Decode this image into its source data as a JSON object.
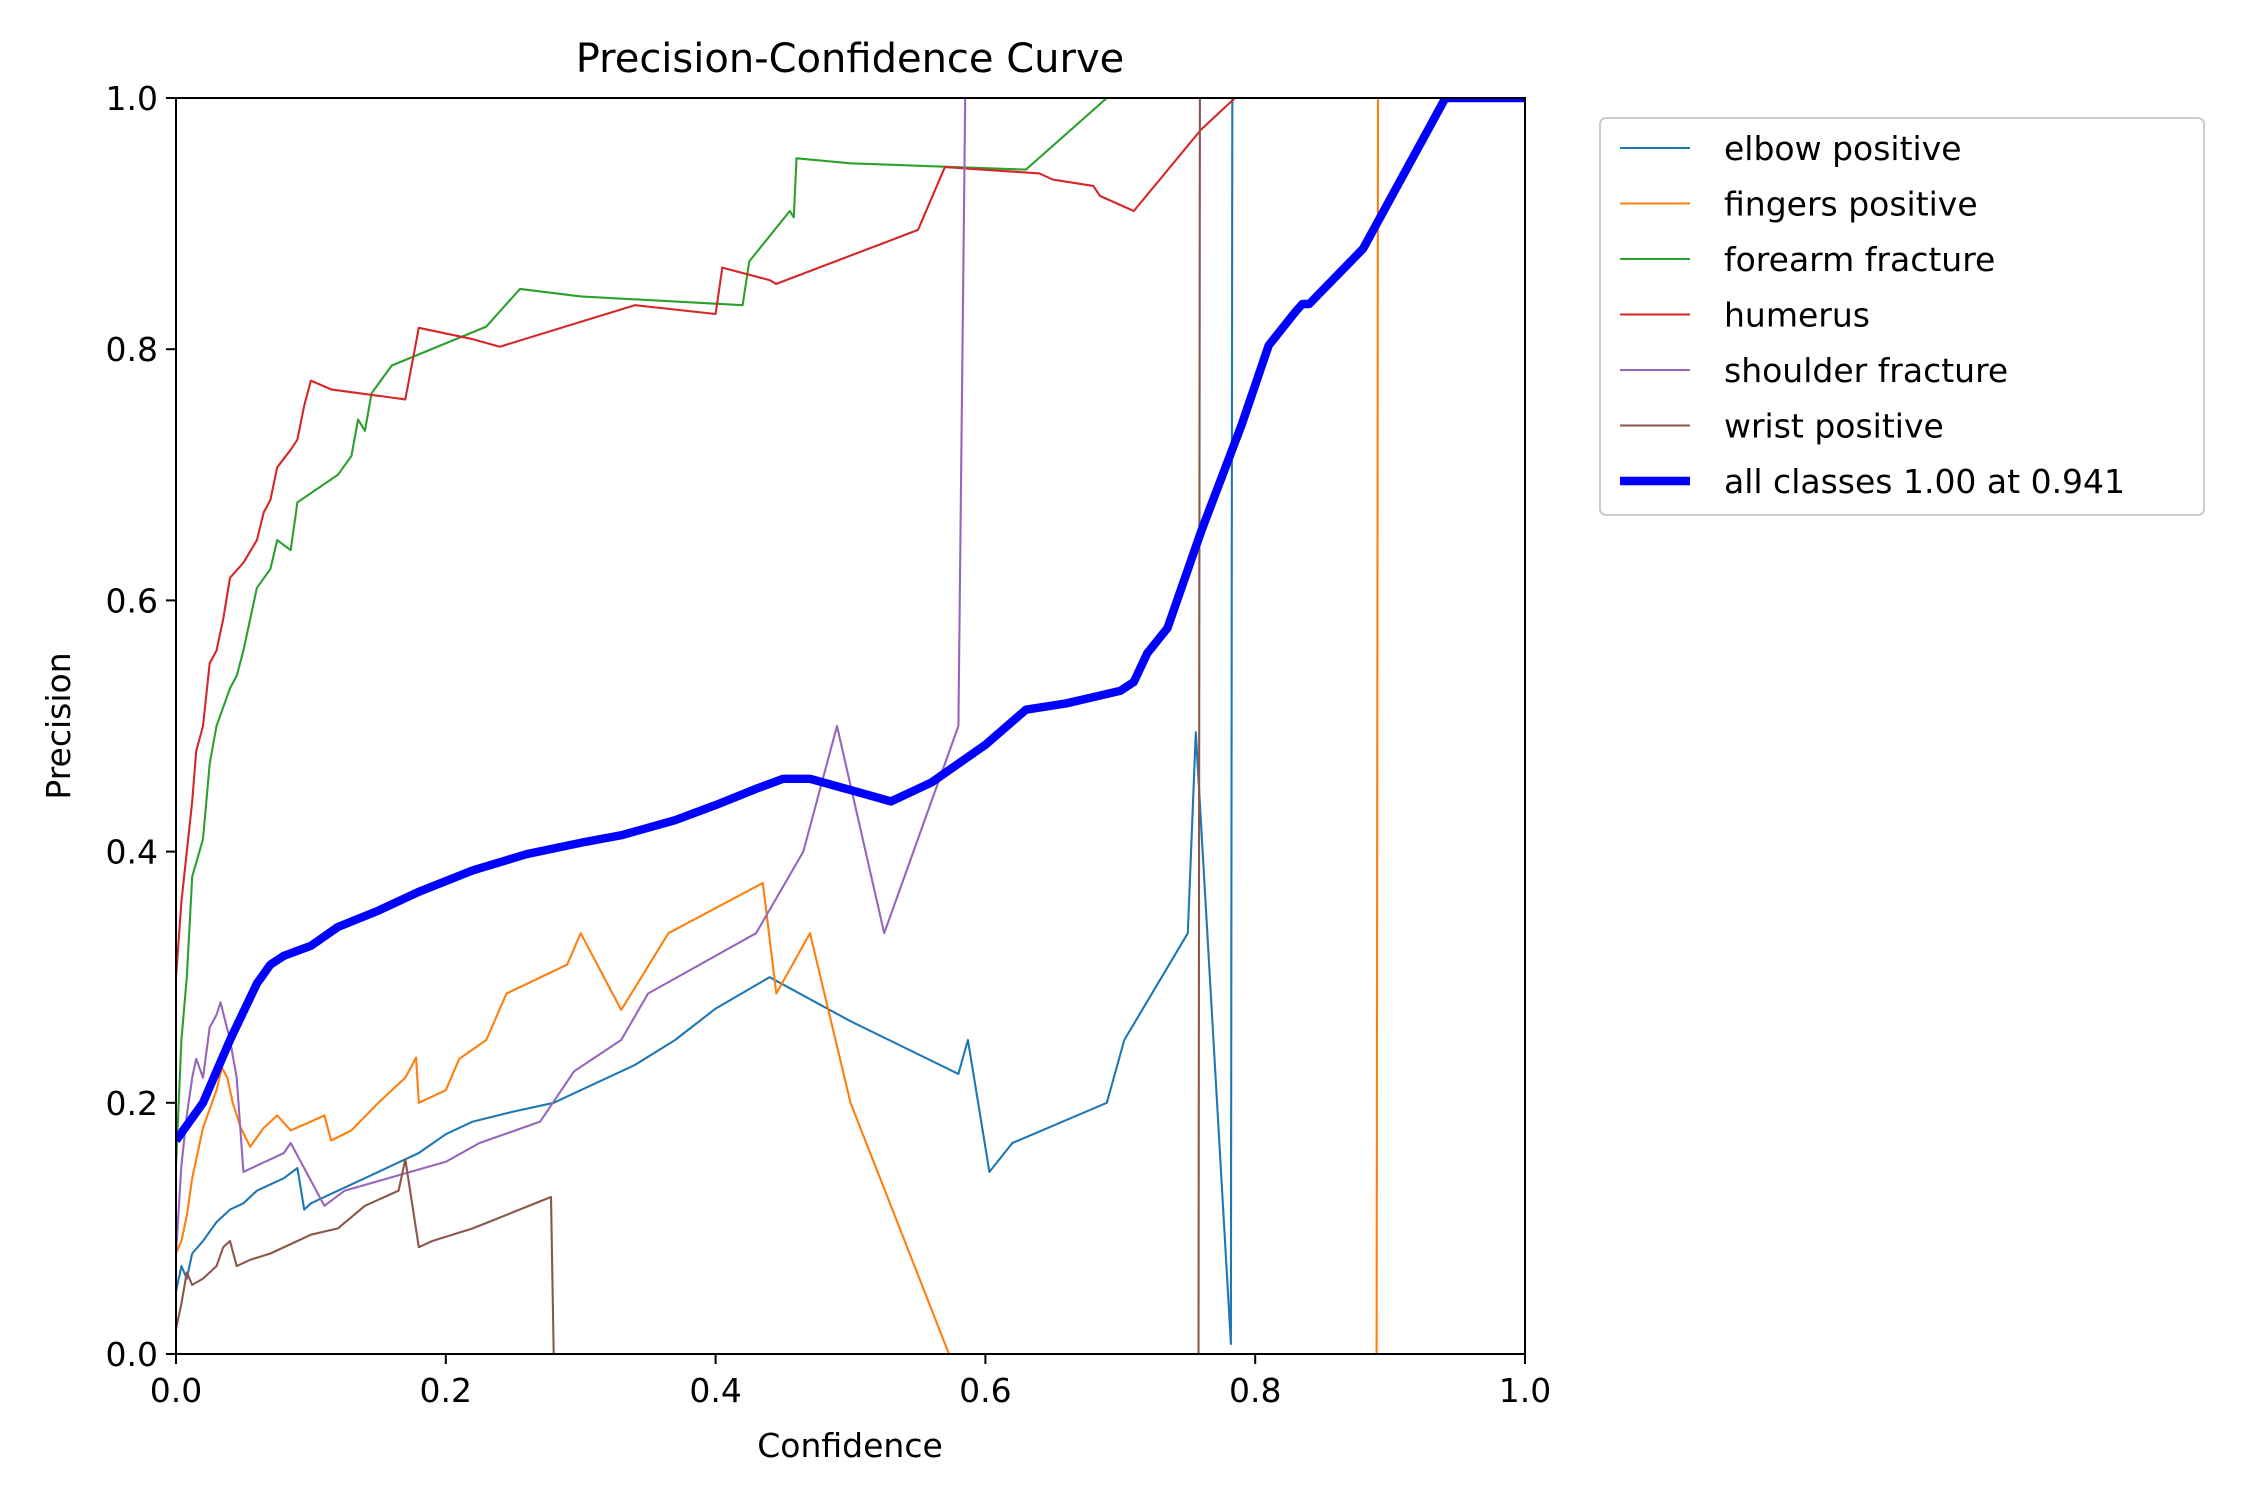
{
  "chart_data": {
    "type": "line",
    "title": "Precision-Confidence Curve",
    "xlabel": "Confidence",
    "ylabel": "Precision",
    "xlim": [
      0,
      1
    ],
    "ylim": [
      0,
      1
    ],
    "xticks": [
      "0.0",
      "0.2",
      "0.4",
      "0.6",
      "0.8",
      "1.0"
    ],
    "yticks": [
      "0.0",
      "0.2",
      "0.4",
      "0.6",
      "0.8",
      "1.0"
    ],
    "grid": false,
    "legend_position": "outside-top-right",
    "series": [
      {
        "name": "elbow positive",
        "color": "#1f77b4",
        "linewidth": 1.5,
        "points": [
          [
            0.0,
            0.05
          ],
          [
            0.004,
            0.07
          ],
          [
            0.008,
            0.06
          ],
          [
            0.012,
            0.08
          ],
          [
            0.02,
            0.09
          ],
          [
            0.03,
            0.105
          ],
          [
            0.04,
            0.115
          ],
          [
            0.05,
            0.12
          ],
          [
            0.06,
            0.13
          ],
          [
            0.07,
            0.135
          ],
          [
            0.08,
            0.14
          ],
          [
            0.09,
            0.148
          ],
          [
            0.095,
            0.115
          ],
          [
            0.1,
            0.12
          ],
          [
            0.12,
            0.13
          ],
          [
            0.14,
            0.14
          ],
          [
            0.16,
            0.15
          ],
          [
            0.18,
            0.16
          ],
          [
            0.2,
            0.175
          ],
          [
            0.22,
            0.185
          ],
          [
            0.25,
            0.193
          ],
          [
            0.28,
            0.2
          ],
          [
            0.3,
            0.21
          ],
          [
            0.34,
            0.23
          ],
          [
            0.37,
            0.25
          ],
          [
            0.4,
            0.275
          ],
          [
            0.44,
            0.3
          ],
          [
            0.5,
            0.265
          ],
          [
            0.58,
            0.223
          ],
          [
            0.587,
            0.25
          ],
          [
            0.603,
            0.145
          ],
          [
            0.62,
            0.168
          ],
          [
            0.69,
            0.2
          ],
          [
            0.703,
            0.25
          ],
          [
            0.75,
            0.335
          ],
          [
            0.756,
            0.495
          ],
          [
            0.782,
            0.008
          ],
          [
            0.783,
            1.0
          ],
          [
            1.0,
            1.0
          ]
        ]
      },
      {
        "name": "fingers positive",
        "color": "#ff7f0e",
        "linewidth": 1.5,
        "points": [
          [
            0.0,
            0.08
          ],
          [
            0.004,
            0.09
          ],
          [
            0.008,
            0.11
          ],
          [
            0.012,
            0.14
          ],
          [
            0.02,
            0.18
          ],
          [
            0.03,
            0.21
          ],
          [
            0.034,
            0.228
          ],
          [
            0.038,
            0.22
          ],
          [
            0.042,
            0.2
          ],
          [
            0.048,
            0.18
          ],
          [
            0.055,
            0.165
          ],
          [
            0.065,
            0.18
          ],
          [
            0.075,
            0.19
          ],
          [
            0.085,
            0.178
          ],
          [
            0.1,
            0.185
          ],
          [
            0.11,
            0.19
          ],
          [
            0.115,
            0.17
          ],
          [
            0.13,
            0.178
          ],
          [
            0.15,
            0.2
          ],
          [
            0.17,
            0.22
          ],
          [
            0.178,
            0.236
          ],
          [
            0.18,
            0.2
          ],
          [
            0.2,
            0.21
          ],
          [
            0.21,
            0.235
          ],
          [
            0.23,
            0.25
          ],
          [
            0.245,
            0.287
          ],
          [
            0.29,
            0.31
          ],
          [
            0.3,
            0.335
          ],
          [
            0.33,
            0.274
          ],
          [
            0.345,
            0.3
          ],
          [
            0.365,
            0.335
          ],
          [
            0.435,
            0.375
          ],
          [
            0.445,
            0.287
          ],
          [
            0.47,
            0.335
          ],
          [
            0.5,
            0.2
          ],
          [
            0.573,
            0.0
          ],
          [
            0.89,
            0.0
          ],
          [
            0.891,
            1.0
          ],
          [
            1.0,
            1.0
          ]
        ]
      },
      {
        "name": "forearm fracture",
        "color": "#2ca02c",
        "linewidth": 1.5,
        "points": [
          [
            0.0,
            0.15
          ],
          [
            0.004,
            0.25
          ],
          [
            0.008,
            0.3
          ],
          [
            0.012,
            0.38
          ],
          [
            0.02,
            0.41
          ],
          [
            0.025,
            0.47
          ],
          [
            0.03,
            0.5
          ],
          [
            0.04,
            0.53
          ],
          [
            0.045,
            0.54
          ],
          [
            0.05,
            0.56
          ],
          [
            0.06,
            0.61
          ],
          [
            0.07,
            0.625
          ],
          [
            0.075,
            0.648
          ],
          [
            0.085,
            0.64
          ],
          [
            0.09,
            0.678
          ],
          [
            0.12,
            0.7
          ],
          [
            0.13,
            0.715
          ],
          [
            0.135,
            0.744
          ],
          [
            0.14,
            0.735
          ],
          [
            0.145,
            0.765
          ],
          [
            0.16,
            0.787
          ],
          [
            0.23,
            0.818
          ],
          [
            0.255,
            0.848
          ],
          [
            0.3,
            0.842
          ],
          [
            0.42,
            0.835
          ],
          [
            0.425,
            0.87
          ],
          [
            0.455,
            0.91
          ],
          [
            0.458,
            0.905
          ],
          [
            0.46,
            0.952
          ],
          [
            0.5,
            0.948
          ],
          [
            0.63,
            0.943
          ],
          [
            0.69,
            1.0
          ],
          [
            1.0,
            1.0
          ]
        ]
      },
      {
        "name": "humerus",
        "color": "#d62728",
        "linewidth": 1.5,
        "points": [
          [
            0.0,
            0.3
          ],
          [
            0.004,
            0.36
          ],
          [
            0.008,
            0.4
          ],
          [
            0.012,
            0.44
          ],
          [
            0.015,
            0.48
          ],
          [
            0.02,
            0.5
          ],
          [
            0.025,
            0.55
          ],
          [
            0.03,
            0.56
          ],
          [
            0.035,
            0.585
          ],
          [
            0.04,
            0.618
          ],
          [
            0.05,
            0.63
          ],
          [
            0.06,
            0.648
          ],
          [
            0.065,
            0.67
          ],
          [
            0.07,
            0.68
          ],
          [
            0.075,
            0.706
          ],
          [
            0.085,
            0.72
          ],
          [
            0.09,
            0.728
          ],
          [
            0.095,
            0.755
          ],
          [
            0.1,
            0.775
          ],
          [
            0.115,
            0.768
          ],
          [
            0.17,
            0.76
          ],
          [
            0.18,
            0.817
          ],
          [
            0.22,
            0.808
          ],
          [
            0.24,
            0.802
          ],
          [
            0.34,
            0.835
          ],
          [
            0.4,
            0.828
          ],
          [
            0.405,
            0.865
          ],
          [
            0.44,
            0.855
          ],
          [
            0.445,
            0.852
          ],
          [
            0.55,
            0.895
          ],
          [
            0.57,
            0.945
          ],
          [
            0.64,
            0.94
          ],
          [
            0.65,
            0.935
          ],
          [
            0.68,
            0.93
          ],
          [
            0.685,
            0.922
          ],
          [
            0.71,
            0.91
          ],
          [
            0.76,
            0.975
          ],
          [
            0.785,
            1.0
          ],
          [
            1.0,
            1.0
          ]
        ]
      },
      {
        "name": "shoulder fracture",
        "color": "#9467bd",
        "linewidth": 1.5,
        "points": [
          [
            0.0,
            0.08
          ],
          [
            0.004,
            0.15
          ],
          [
            0.008,
            0.19
          ],
          [
            0.012,
            0.22
          ],
          [
            0.015,
            0.235
          ],
          [
            0.02,
            0.22
          ],
          [
            0.025,
            0.26
          ],
          [
            0.03,
            0.27
          ],
          [
            0.033,
            0.28
          ],
          [
            0.04,
            0.25
          ],
          [
            0.045,
            0.22
          ],
          [
            0.05,
            0.145
          ],
          [
            0.06,
            0.15
          ],
          [
            0.07,
            0.155
          ],
          [
            0.08,
            0.16
          ],
          [
            0.085,
            0.168
          ],
          [
            0.11,
            0.118
          ],
          [
            0.125,
            0.13
          ],
          [
            0.2,
            0.153
          ],
          [
            0.225,
            0.168
          ],
          [
            0.27,
            0.185
          ],
          [
            0.295,
            0.225
          ],
          [
            0.33,
            0.25
          ],
          [
            0.35,
            0.287
          ],
          [
            0.43,
            0.335
          ],
          [
            0.465,
            0.4
          ],
          [
            0.49,
            0.5
          ],
          [
            0.525,
            0.335
          ],
          [
            0.58,
            0.5
          ],
          [
            0.585,
            1.0
          ],
          [
            1.0,
            1.0
          ]
        ]
      },
      {
        "name": "wrist positive",
        "color": "#8c564b",
        "linewidth": 1.5,
        "points": [
          [
            0.0,
            0.02
          ],
          [
            0.004,
            0.04
          ],
          [
            0.008,
            0.065
          ],
          [
            0.012,
            0.055
          ],
          [
            0.02,
            0.06
          ],
          [
            0.03,
            0.07
          ],
          [
            0.035,
            0.085
          ],
          [
            0.04,
            0.09
          ],
          [
            0.045,
            0.07
          ],
          [
            0.055,
            0.075
          ],
          [
            0.07,
            0.08
          ],
          [
            0.09,
            0.09
          ],
          [
            0.1,
            0.095
          ],
          [
            0.12,
            0.1
          ],
          [
            0.14,
            0.118
          ],
          [
            0.165,
            0.13
          ],
          [
            0.17,
            0.155
          ],
          [
            0.18,
            0.085
          ],
          [
            0.19,
            0.09
          ],
          [
            0.22,
            0.1
          ],
          [
            0.25,
            0.113
          ],
          [
            0.278,
            0.125
          ],
          [
            0.28,
            0.0
          ],
          [
            0.758,
            0.0
          ],
          [
            0.759,
            1.0
          ],
          [
            1.0,
            1.0
          ]
        ]
      },
      {
        "name": "all classes 1.00 at 0.941",
        "color": "#0000ff",
        "linewidth": 6,
        "points": [
          [
            0.0,
            0.17
          ],
          [
            0.02,
            0.2
          ],
          [
            0.04,
            0.25
          ],
          [
            0.06,
            0.295
          ],
          [
            0.07,
            0.31
          ],
          [
            0.08,
            0.317
          ],
          [
            0.1,
            0.325
          ],
          [
            0.12,
            0.34
          ],
          [
            0.15,
            0.353
          ],
          [
            0.18,
            0.368
          ],
          [
            0.22,
            0.385
          ],
          [
            0.26,
            0.398
          ],
          [
            0.3,
            0.407
          ],
          [
            0.33,
            0.413
          ],
          [
            0.37,
            0.425
          ],
          [
            0.4,
            0.437
          ],
          [
            0.43,
            0.45
          ],
          [
            0.45,
            0.458
          ],
          [
            0.47,
            0.458
          ],
          [
            0.49,
            0.452
          ],
          [
            0.51,
            0.446
          ],
          [
            0.53,
            0.44
          ],
          [
            0.56,
            0.455
          ],
          [
            0.6,
            0.485
          ],
          [
            0.63,
            0.513
          ],
          [
            0.66,
            0.518
          ],
          [
            0.7,
            0.528
          ],
          [
            0.71,
            0.535
          ],
          [
            0.72,
            0.558
          ],
          [
            0.735,
            0.578
          ],
          [
            0.76,
            0.655
          ],
          [
            0.79,
            0.74
          ],
          [
            0.81,
            0.803
          ],
          [
            0.83,
            0.83
          ],
          [
            0.835,
            0.836
          ],
          [
            0.84,
            0.836
          ],
          [
            0.88,
            0.88
          ],
          [
            0.941,
            1.0
          ],
          [
            1.0,
            1.0
          ]
        ]
      }
    ]
  }
}
